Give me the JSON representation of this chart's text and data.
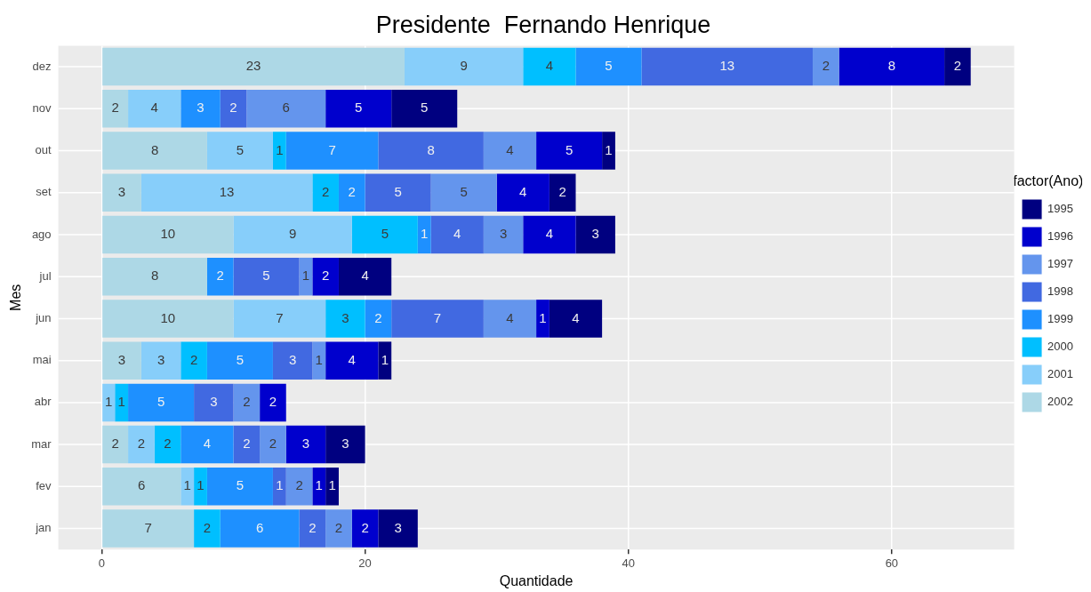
{
  "chart_data": {
    "type": "bar",
    "orientation": "horizontal",
    "stacked": true,
    "title": "Presidente  Fernando Henrique",
    "xlabel": "Quantidade",
    "ylabel": "Mes",
    "legend_title": "factor(Ano)",
    "legend": "right",
    "grid": true,
    "data_labels": true,
    "categories": [
      "dez",
      "nov",
      "out",
      "set",
      "ago",
      "jul",
      "jun",
      "mai",
      "abr",
      "mar",
      "fev",
      "jan"
    ],
    "xlim": [
      -3.3,
      69.3
    ],
    "xticks": [
      0,
      20,
      40,
      60
    ],
    "series": [
      {
        "name": "2002",
        "color": "#add8e6",
        "values": [
          23,
          2,
          8,
          3,
          10,
          8,
          10,
          3,
          null,
          2,
          6,
          7
        ]
      },
      {
        "name": "2001",
        "color": "#87cefa",
        "values": [
          9,
          4,
          5,
          13,
          9,
          null,
          7,
          3,
          1,
          2,
          1,
          null
        ]
      },
      {
        "name": "2000",
        "color": "#00bfff",
        "values": [
          4,
          null,
          1,
          2,
          5,
          null,
          3,
          2,
          1,
          2,
          1,
          2
        ]
      },
      {
        "name": "1999",
        "color": "#1e90ff",
        "values": [
          5,
          3,
          7,
          2,
          1,
          2,
          2,
          5,
          5,
          4,
          5,
          6
        ]
      },
      {
        "name": "1998",
        "color": "#4169e1",
        "values": [
          13,
          2,
          8,
          5,
          4,
          5,
          7,
          3,
          3,
          2,
          1,
          2
        ]
      },
      {
        "name": "1997",
        "color": "#6495ed",
        "values": [
          2,
          6,
          4,
          5,
          3,
          1,
          4,
          1,
          2,
          2,
          2,
          2
        ]
      },
      {
        "name": "1996",
        "color": "#0000cd",
        "values": [
          8,
          5,
          5,
          4,
          4,
          2,
          1,
          4,
          2,
          3,
          1,
          2
        ]
      },
      {
        "name": "1995",
        "color": "#000080",
        "values": [
          2,
          5,
          1,
          2,
          3,
          4,
          4,
          1,
          null,
          3,
          1,
          3
        ]
      }
    ]
  }
}
